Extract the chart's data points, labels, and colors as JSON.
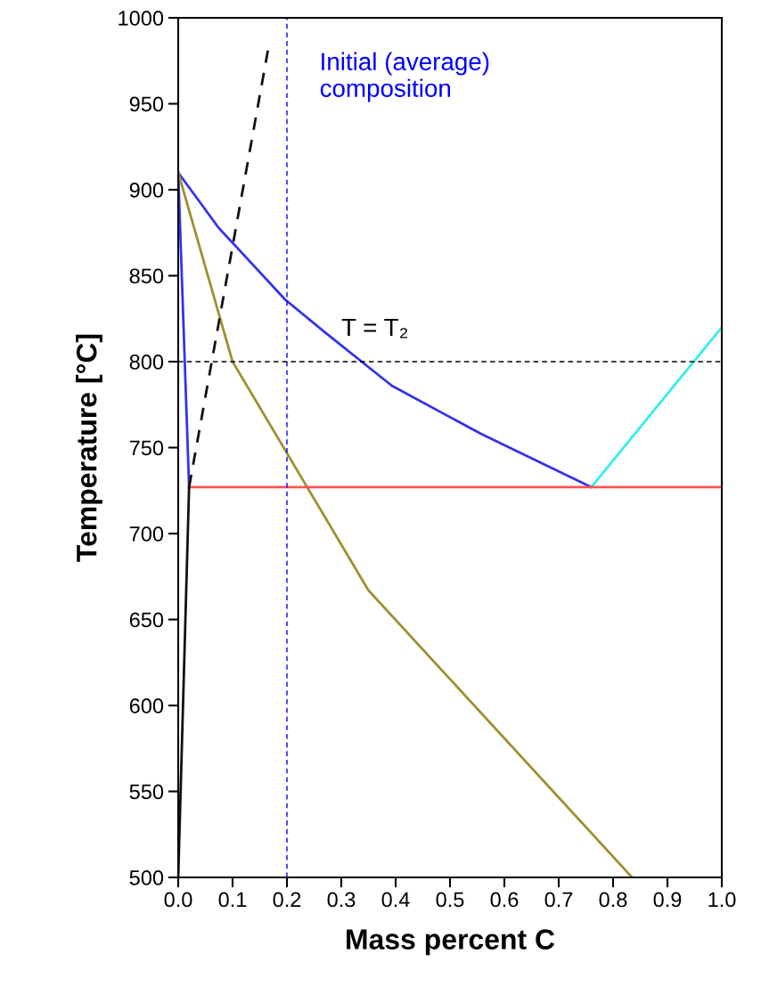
{
  "chart_data": {
    "type": "line",
    "xlabel": "Mass percent C",
    "ylabel": "Temperature [°C]",
    "series": [
      {
        "color": "#3333ee",
        "x": [
          0,
          0.074,
          0.197,
          0.27,
          0.393,
          0.557,
          0.76
        ],
        "values": [
          910,
          878,
          836,
          817,
          786,
          758,
          727
        ]
      },
      {
        "color": "#3333ee",
        "x": [
          0,
          0.02
        ],
        "values": [
          910,
          727
        ]
      },
      {
        "color": "#a09030",
        "x": [
          0,
          0.1,
          0.35,
          0.835
        ],
        "values": [
          910,
          800,
          667,
          500
        ]
      },
      {
        "color": "#33eeee",
        "x": [
          0.76,
          1.0
        ],
        "values": [
          727,
          820
        ]
      },
      {
        "color": "#ff5555",
        "x": [
          0.02,
          1.0
        ],
        "values": [
          727,
          727
        ]
      },
      {
        "color": "#111111",
        "x": [
          0,
          0.02
        ],
        "values": [
          500,
          727
        ]
      },
      {
        "color": "#111111",
        "line_style": "dashed",
        "x": [
          0.02,
          0.165
        ],
        "values": [
          727,
          981
        ]
      }
    ],
    "ref_lines": [
      {
        "axis": "x",
        "value": 0.2,
        "label": "Initial (average)\ncomposition",
        "color": "#0000ff",
        "line_style": "dashed"
      },
      {
        "axis": "y",
        "value": 800,
        "label": "T = T₂",
        "color": "#000000",
        "line_style": "dashed"
      }
    ],
    "xlim": [
      0,
      1.0
    ],
    "ylim": [
      500,
      1000
    ],
    "xticks": [
      {
        "value": 0,
        "label": "0.0"
      },
      0.1,
      0.2,
      0.3,
      0.4,
      0.5,
      0.6,
      0.7,
      0.8,
      0.9,
      {
        "value": 1.0,
        "label": "1.0"
      }
    ],
    "yticks": [
      500,
      550,
      600,
      650,
      700,
      750,
      800,
      850,
      900,
      950,
      1000
    ],
    "grid": false,
    "legend": false,
    "marker": "none",
    "line_style": "solid"
  }
}
